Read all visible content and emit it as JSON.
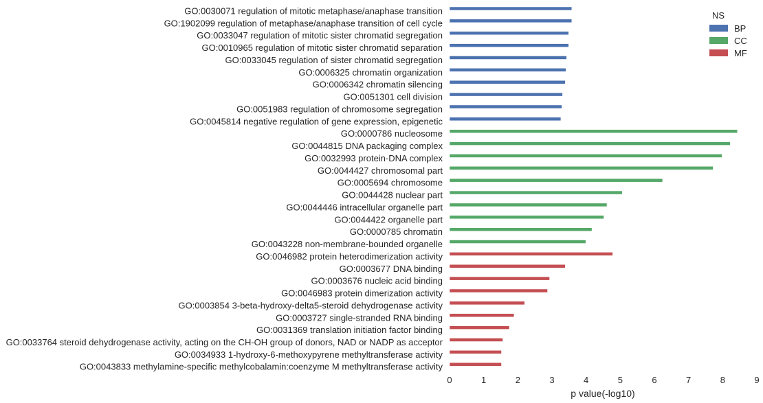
{
  "chart_data": {
    "type": "bar",
    "orientation": "horizontal",
    "xlabel": "p value(-log10)",
    "ylabel": "",
    "xlim": [
      0,
      9
    ],
    "xticks": [
      0,
      1,
      2,
      3,
      4,
      5,
      6,
      7,
      8,
      9
    ],
    "grid": false,
    "legend": {
      "title": "NS",
      "placement": "top-right",
      "entries": [
        {
          "name": "BP",
          "color": "#4c72b0"
        },
        {
          "name": "CC",
          "color": "#55a868"
        },
        {
          "name": "MF",
          "color": "#c44e52"
        }
      ]
    },
    "categories": [
      {
        "label": "GO:0030071 regulation of mitotic metaphase/anaphase transition",
        "value": 3.58,
        "ns": "BP"
      },
      {
        "label": "GO:1902099 regulation of metaphase/anaphase transition of cell cycle",
        "value": 3.58,
        "ns": "BP"
      },
      {
        "label": "GO:0033047 regulation of mitotic sister chromatid segregation",
        "value": 3.49,
        "ns": "BP"
      },
      {
        "label": "GO:0010965 regulation of mitotic sister chromatid separation",
        "value": 3.49,
        "ns": "BP"
      },
      {
        "label": "GO:0033045 regulation of sister chromatid segregation",
        "value": 3.43,
        "ns": "BP"
      },
      {
        "label": "GO:0006325 chromatin organization",
        "value": 3.41,
        "ns": "BP"
      },
      {
        "label": "GO:0006342 chromatin silencing",
        "value": 3.39,
        "ns": "BP"
      },
      {
        "label": "GO:0051301 cell division",
        "value": 3.31,
        "ns": "BP"
      },
      {
        "label": "GO:0051983 regulation of chromosome segregation",
        "value": 3.29,
        "ns": "BP"
      },
      {
        "label": "GO:0045814 negative regulation of gene expression, epigenetic",
        "value": 3.26,
        "ns": "BP"
      },
      {
        "label": "GO:0000786 nucleosome",
        "value": 8.43,
        "ns": "CC"
      },
      {
        "label": "GO:0044815 DNA packaging complex",
        "value": 8.22,
        "ns": "CC"
      },
      {
        "label": "GO:0032993 protein-DNA complex",
        "value": 7.98,
        "ns": "CC"
      },
      {
        "label": "GO:0044427 chromosomal part",
        "value": 7.72,
        "ns": "CC"
      },
      {
        "label": "GO:0005694 chromosome",
        "value": 6.24,
        "ns": "CC"
      },
      {
        "label": "GO:0044428 nuclear part",
        "value": 5.06,
        "ns": "CC"
      },
      {
        "label": "GO:0044446 intracellular organelle part",
        "value": 4.61,
        "ns": "CC"
      },
      {
        "label": "GO:0044422 organelle part",
        "value": 4.52,
        "ns": "CC"
      },
      {
        "label": "GO:0000785 chromatin",
        "value": 4.17,
        "ns": "CC"
      },
      {
        "label": "GO:0043228 non-membrane-bounded organelle",
        "value": 3.99,
        "ns": "CC"
      },
      {
        "label": "GO:0046982 protein heterodimerization activity",
        "value": 4.78,
        "ns": "MF"
      },
      {
        "label": "GO:0003677 DNA binding",
        "value": 3.39,
        "ns": "MF"
      },
      {
        "label": "GO:0003676 nucleic acid binding",
        "value": 2.93,
        "ns": "MF"
      },
      {
        "label": "GO:0046983 protein dimerization activity",
        "value": 2.87,
        "ns": "MF"
      },
      {
        "label": "GO:0003854 3-beta-hydroxy-delta5-steroid dehydrogenase activity",
        "value": 2.2,
        "ns": "MF"
      },
      {
        "label": "GO:0003727 single-stranded RNA binding",
        "value": 1.89,
        "ns": "MF"
      },
      {
        "label": "GO:0031369 translation initiation factor binding",
        "value": 1.75,
        "ns": "MF"
      },
      {
        "label": "GO:0033764 steroid dehydrogenase activity, acting on the CH-OH group of donors, NAD or NADP as acceptor",
        "value": 1.56,
        "ns": "MF"
      },
      {
        "label": "GO:0034933 1-hydroxy-6-methoxypyrene methyltransferase activity",
        "value": 1.52,
        "ns": "MF"
      },
      {
        "label": "GO:0043833 methylamine-specific methylcobalamin:coenzyme M methyltransferase activity",
        "value": 1.52,
        "ns": "MF"
      }
    ]
  }
}
